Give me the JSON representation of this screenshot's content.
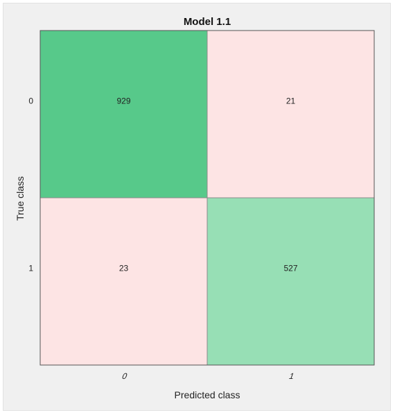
{
  "chart_data": {
    "type": "heatmap",
    "title": "Model 1.1",
    "xlabel": "Predicted class",
    "ylabel": "True class",
    "x_categories": [
      "0",
      "1"
    ],
    "y_categories": [
      "0",
      "1"
    ],
    "values": [
      [
        929,
        21
      ],
      [
        23,
        527
      ]
    ],
    "cell_colors": [
      [
        "#57c98a",
        "#fde4e4"
      ],
      [
        "#fde4e4",
        "#97dfb5"
      ]
    ]
  },
  "colors": {
    "background": "#f0f0f0",
    "correct_dark": "#57c98a",
    "correct_light": "#97dfb5",
    "error": "#fde4e4",
    "grid": "#8a8a8a"
  }
}
